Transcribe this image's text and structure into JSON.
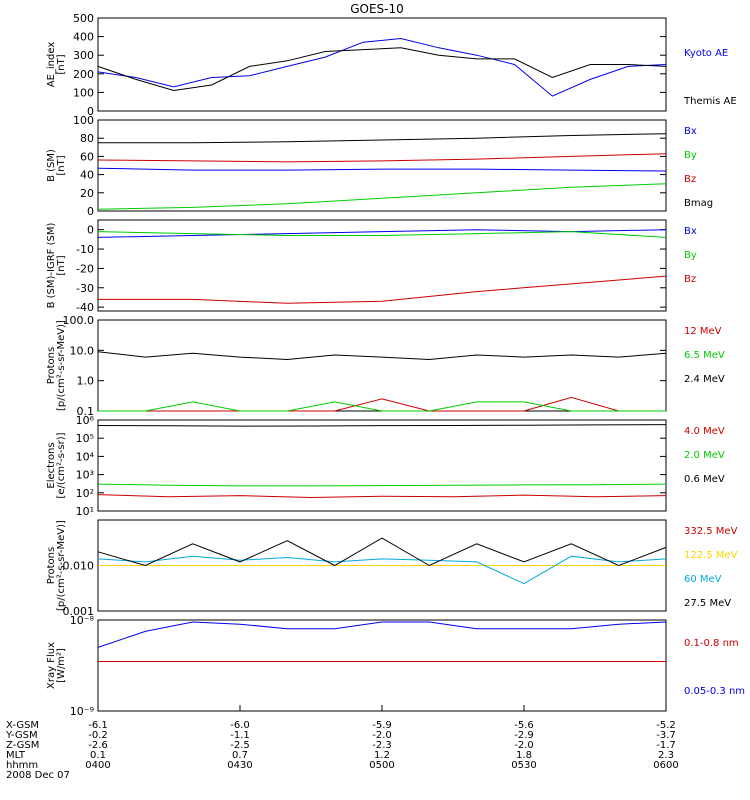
{
  "title": "GOES-10",
  "colors": {
    "black": "#000000",
    "blue": "#0000ee",
    "green": "#00cc00",
    "red": "#cc0000",
    "yellow": "#ffd400",
    "cyan": "#00aadd"
  },
  "chart_data": [
    {
      "type": "line",
      "ylabel": [
        "AE_index",
        "[nT]"
      ],
      "ylim": [
        0,
        500
      ],
      "yticks": [
        "500",
        "400",
        "300",
        "200",
        "100",
        "0"
      ],
      "x": [
        "0400",
        "0408",
        "0416",
        "0424",
        "0432",
        "0440",
        "0448",
        "0456",
        "0504",
        "0512",
        "0520",
        "0528",
        "0536",
        "0544",
        "0552",
        "0600"
      ],
      "series": [
        {
          "name": "Kyoto AE",
          "color": "blue",
          "label_pos": 1,
          "values": [
            210,
            180,
            130,
            180,
            190,
            240,
            290,
            370,
            390,
            340,
            300,
            250,
            80,
            170,
            240,
            250
          ]
        },
        {
          "name": "Themis AE",
          "color": "black",
          "label_pos": 3,
          "values": [
            240,
            170,
            110,
            140,
            240,
            270,
            320,
            330,
            340,
            300,
            280,
            280,
            180,
            250,
            250,
            240
          ]
        }
      ]
    },
    {
      "type": "line",
      "ylabel": [
        "B (SM)",
        "[nT]"
      ],
      "ylim": [
        0,
        100
      ],
      "yticks": [
        "100",
        "80",
        "60",
        "40",
        "20",
        "0"
      ],
      "x": [
        "0400",
        "0420",
        "0440",
        "0500",
        "0520",
        "0540",
        "0600"
      ],
      "series": [
        {
          "name": "Bx",
          "color": "blue",
          "label_pos": 0,
          "values": [
            47,
            45,
            45,
            46,
            46,
            45,
            44
          ]
        },
        {
          "name": "By",
          "color": "green",
          "label_pos": 1,
          "values": [
            2,
            4,
            8,
            14,
            20,
            26,
            30
          ]
        },
        {
          "name": "Bz",
          "color": "red",
          "label_pos": 2,
          "values": [
            56,
            55,
            54,
            55,
            57,
            60,
            63
          ]
        },
        {
          "name": "Bmag",
          "color": "black",
          "label_pos": 3,
          "values": [
            75,
            75,
            76,
            78,
            80,
            83,
            85
          ]
        }
      ]
    },
    {
      "type": "line",
      "ylabel": [
        "B (SM)-IGRF (SM)",
        "[nT]"
      ],
      "ylim": [
        -42,
        5
      ],
      "yticks": [
        "0",
        "-10",
        "-20",
        "-30",
        "-40"
      ],
      "ytick_values": [
        0,
        -10,
        -20,
        -30,
        -40
      ],
      "x": [
        "0400",
        "0420",
        "0440",
        "0500",
        "0520",
        "0540",
        "0600"
      ],
      "series": [
        {
          "name": "Bx",
          "color": "blue",
          "label_pos": 0,
          "values": [
            -4,
            -3,
            -2,
            -1,
            0,
            -1,
            0
          ]
        },
        {
          "name": "By",
          "color": "green",
          "label_pos": 1,
          "values": [
            -1,
            -2,
            -3,
            -3,
            -2,
            -1,
            -4
          ]
        },
        {
          "name": "Bz",
          "color": "red",
          "label_pos": 2,
          "values": [
            -36,
            -36,
            -38,
            -37,
            -32,
            -28,
            -24
          ]
        }
      ]
    },
    {
      "type": "line",
      "scale": "log",
      "ylabel": [
        "Protons",
        "[p/(cm²-s-sr-MeV)]"
      ],
      "ylim": [
        0.1,
        100
      ],
      "yticks": [
        "100.0",
        "10.0",
        "1.0",
        "0.1"
      ],
      "ytick_values": [
        100,
        10,
        1,
        0.1
      ],
      "x": [
        "0400",
        "0410",
        "0420",
        "0430",
        "0440",
        "0450",
        "0500",
        "0510",
        "0520",
        "0530",
        "0540",
        "0550",
        "0600"
      ],
      "series": [
        {
          "name": "12 MeV",
          "color": "red",
          "label_pos": 0,
          "values": [
            0.1,
            0.1,
            0.1,
            0.1,
            0.1,
            0.1,
            0.25,
            0.1,
            0.1,
            0.1,
            0.28,
            0.1,
            0.1
          ]
        },
        {
          "name": "6.5 MeV",
          "color": "green",
          "label_pos": 1,
          "values": [
            0.1,
            0.1,
            0.2,
            0.1,
            0.1,
            0.2,
            0.1,
            0.1,
            0.2,
            0.2,
            0.1,
            0.1,
            0.1
          ]
        },
        {
          "name": "2.4 MeV",
          "color": "black",
          "label_pos": 2,
          "values": [
            9,
            6,
            8,
            6,
            5,
            7,
            6,
            5,
            7,
            6,
            7,
            6,
            8
          ]
        }
      ]
    },
    {
      "type": "line",
      "scale": "log",
      "ylabel": [
        "Electrons",
        "[e/(cm²-s-sr)]"
      ],
      "ylim": [
        10,
        1000000
      ],
      "yticks": [
        "10⁶",
        "10⁵",
        "10⁴",
        "10³",
        "10²",
        "10¹"
      ],
      "ytick_values": [
        1000000,
        100000,
        10000,
        1000,
        100,
        10
      ],
      "x": [
        "0400",
        "0415",
        "0430",
        "0445",
        "0500",
        "0515",
        "0530",
        "0545",
        "0600"
      ],
      "series": [
        {
          "name": "4.0 MeV",
          "color": "red",
          "label_pos": 0,
          "values": [
            80,
            60,
            70,
            55,
            65,
            60,
            75,
            60,
            70
          ]
        },
        {
          "name": "2.0 MeV",
          "color": "green",
          "label_pos": 1,
          "values": [
            300,
            260,
            240,
            240,
            250,
            260,
            270,
            280,
            300
          ]
        },
        {
          "name": "0.6 MeV",
          "color": "black",
          "label_pos": 2,
          "values": [
            500000,
            480000,
            460000,
            470000,
            490000,
            500000,
            520000,
            540000,
            560000
          ]
        }
      ]
    },
    {
      "type": "line",
      "scale": "log",
      "ylabel": [
        "Protons",
        "[p/(cm²-s-sr-MeV)]"
      ],
      "ylim": [
        0.001,
        0.1
      ],
      "yticks": [
        "0.010",
        "0.001"
      ],
      "ytick_values": [
        0.01,
        0.001
      ],
      "x": [
        "0400",
        "0410",
        "0420",
        "0430",
        "0440",
        "0450",
        "0500",
        "0510",
        "0520",
        "0530",
        "0540",
        "0550",
        "0600"
      ],
      "series": [
        {
          "name": "332.5 MeV",
          "color": "red",
          "label_pos": 0,
          "values": [
            0.01,
            0.01,
            0.01,
            0.01,
            0.01,
            0.01,
            0.01,
            0.01,
            0.01,
            0.01,
            0.01,
            0.01,
            0.01
          ]
        },
        {
          "name": "122.5 MeV",
          "color": "yellow",
          "label_pos": 1,
          "values": [
            0.01,
            0.01,
            0.01,
            0.01,
            0.01,
            0.01,
            0.01,
            0.01,
            0.01,
            0.01,
            0.01,
            0.01,
            0.01
          ]
        },
        {
          "name": "60 MeV",
          "color": "cyan",
          "label_pos": 2,
          "values": [
            0.014,
            0.012,
            0.016,
            0.013,
            0.015,
            0.012,
            0.014,
            0.013,
            0.012,
            0.004,
            0.016,
            0.012,
            0.014
          ]
        },
        {
          "name": "27.5 MeV",
          "color": "black",
          "label_pos": 3,
          "values": [
            0.02,
            0.01,
            0.03,
            0.012,
            0.035,
            0.01,
            0.04,
            0.01,
            0.03,
            0.012,
            0.03,
            0.01,
            0.025
          ]
        }
      ]
    },
    {
      "type": "line",
      "scale": "log",
      "ylabel": [
        "Xray Flux",
        "[W/m²]"
      ],
      "ylim": [
        1e-09,
        1e-08
      ],
      "yticks": [
        "10⁻⁸",
        "10⁻⁹"
      ],
      "ytick_values": [
        1e-08,
        1e-09
      ],
      "x": [
        "0400",
        "0410",
        "0420",
        "0430",
        "0440",
        "0450",
        "0500",
        "0510",
        "0520",
        "0530",
        "0540",
        "0550",
        "0600"
      ],
      "series": [
        {
          "name": "0.1-0.8 nm",
          "color": "red",
          "label_pos": 0.5,
          "values": [
            3.5e-09,
            3.5e-09,
            3.5e-09,
            3.5e-09,
            3.5e-09,
            3.5e-09,
            3.5e-09,
            3.5e-09,
            3.5e-09,
            3.5e-09,
            3.5e-09,
            3.5e-09,
            3.5e-09
          ]
        },
        {
          "name": "0.05-0.3 nm",
          "color": "blue",
          "label_pos": 2.5,
          "values": [
            5e-09,
            7.5e-09,
            9.5e-09,
            9e-09,
            8e-09,
            8e-09,
            9.5e-09,
            9.5e-09,
            8e-09,
            8e-09,
            8e-09,
            9e-09,
            9.5e-09
          ]
        }
      ]
    }
  ],
  "x_axis": {
    "row_labels": [
      "X-GSM",
      "Y-GSM",
      "Z-GSM",
      "MLT",
      "hhmm"
    ],
    "date": "2008 Dec 07",
    "columns": [
      [
        "-6.1",
        "-0.2",
        "-2.6",
        "0.1",
        "0400"
      ],
      [
        "-6.0",
        "-1.1",
        "-2.5",
        "0.7",
        "0430"
      ],
      [
        "-5.9",
        "-2.0",
        "-2.3",
        "1.2",
        "0500"
      ],
      [
        "-5.6",
        "-2.9",
        "-2.0",
        "1.8",
        "0530"
      ],
      [
        "-5.2",
        "-3.7",
        "-1.7",
        "2.3",
        "0600"
      ]
    ]
  }
}
